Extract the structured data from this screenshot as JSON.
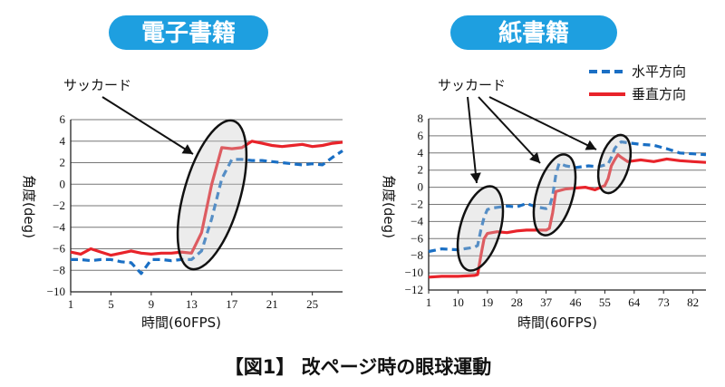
{
  "caption": "【図1】 改ページ時の眼球運動",
  "colors": {
    "horizontal": "#1a6fc4",
    "vertical": "#e8232a",
    "pill": "#1e9fe0",
    "grid": "#777777"
  },
  "chart_data": [
    {
      "type": "line",
      "title": "電子書籍",
      "xlabel": "時間(60FPS)",
      "ylabel": "角度(deg)",
      "xticks": [
        1,
        5,
        9,
        13,
        17,
        21,
        25
      ],
      "yticks": [
        6,
        4,
        2,
        0,
        -2,
        -4,
        -6,
        -8,
        -10
      ],
      "xlim": [
        1,
        28
      ],
      "ylim": [
        -10,
        6
      ],
      "annotation": "サッカード",
      "series": [
        {
          "name": "水平方向",
          "style": "dashed",
          "x": [
            1,
            2,
            3,
            4,
            5,
            6,
            7,
            8,
            9,
            10,
            11,
            12,
            13,
            14,
            15,
            16,
            17,
            18,
            19,
            20,
            21,
            22,
            23,
            24,
            25,
            26,
            27,
            28
          ],
          "y": [
            -7,
            -7,
            -7.1,
            -7,
            -7,
            -7.2,
            -7.3,
            -8.3,
            -7,
            -7,
            -7.1,
            -7,
            -7,
            -6.2,
            -3.2,
            0.5,
            2.3,
            2.3,
            2.2,
            2.2,
            2.1,
            2,
            1.9,
            1.8,
            1.9,
            1.8,
            2.5,
            3.1
          ]
        },
        {
          "name": "垂直方向",
          "style": "solid",
          "x": [
            1,
            2,
            3,
            4,
            5,
            6,
            7,
            8,
            9,
            10,
            11,
            12,
            13,
            14,
            15,
            16,
            17,
            18,
            19,
            20,
            21,
            22,
            23,
            24,
            25,
            26,
            27,
            28
          ],
          "y": [
            -6.3,
            -6.5,
            -6,
            -6.3,
            -6.6,
            -6.4,
            -6.2,
            -6.4,
            -6.5,
            -6.4,
            -6.4,
            -6.3,
            -6.4,
            -4.5,
            0,
            3.4,
            3.3,
            3.4,
            4,
            3.8,
            3.6,
            3.5,
            3.6,
            3.7,
            3.5,
            3.6,
            3.8,
            3.9
          ]
        }
      ]
    },
    {
      "type": "line",
      "title": "紙書籍",
      "xlabel": "時間(60FPS)",
      "ylabel": "角度(deg)",
      "xticks": [
        1,
        10,
        19,
        28,
        37,
        46,
        55,
        64,
        73,
        82
      ],
      "yticks": [
        8,
        6,
        4,
        2,
        0,
        -2,
        -4,
        -6,
        -8,
        -10,
        -12
      ],
      "xlim": [
        1,
        86
      ],
      "ylim": [
        -12,
        8
      ],
      "annotation": "サッカード",
      "legend": {
        "position": "top-right",
        "entries": [
          "水平方向",
          "垂直方向"
        ]
      },
      "series": [
        {
          "name": "水平方向",
          "style": "dashed",
          "x": [
            1,
            5,
            10,
            15,
            16,
            17,
            18,
            19,
            21,
            25,
            28,
            31,
            34,
            37,
            38,
            39,
            40,
            41,
            43,
            46,
            50,
            53,
            56,
            57,
            58,
            59,
            60,
            62,
            66,
            70,
            74,
            78,
            82,
            86
          ],
          "y": [
            -7.5,
            -7.2,
            -7.3,
            -7,
            -6.8,
            -5,
            -3.5,
            -2.6,
            -2.4,
            -2.2,
            -2.3,
            -1.9,
            -2.3,
            -2.5,
            -2.3,
            -1,
            1.5,
            2.8,
            2.5,
            2.3,
            2.5,
            2.4,
            2.7,
            3.5,
            4.5,
            5,
            5.3,
            5.2,
            5,
            4.9,
            4.5,
            4,
            3.9,
            3.8
          ]
        },
        {
          "name": "垂直方向",
          "style": "solid",
          "x": [
            1,
            5,
            10,
            15,
            16,
            17,
            18,
            19,
            22,
            25,
            28,
            31,
            34,
            37,
            38,
            39,
            40,
            43,
            46,
            49,
            52,
            55,
            56,
            57,
            58,
            59,
            60,
            62,
            66,
            70,
            74,
            78,
            82,
            86
          ],
          "y": [
            -10.5,
            -10.4,
            -10.4,
            -10.3,
            -10.2,
            -8,
            -6,
            -5.4,
            -5.2,
            -5.3,
            -5.1,
            -5,
            -5,
            -5,
            -4.8,
            -3,
            -0.5,
            -0.2,
            -0.1,
            0,
            -0.3,
            0.2,
            1,
            2.5,
            3.2,
            3.8,
            3.5,
            3,
            3.2,
            3,
            3.3,
            3.1,
            3,
            2.9
          ]
        }
      ]
    }
  ]
}
